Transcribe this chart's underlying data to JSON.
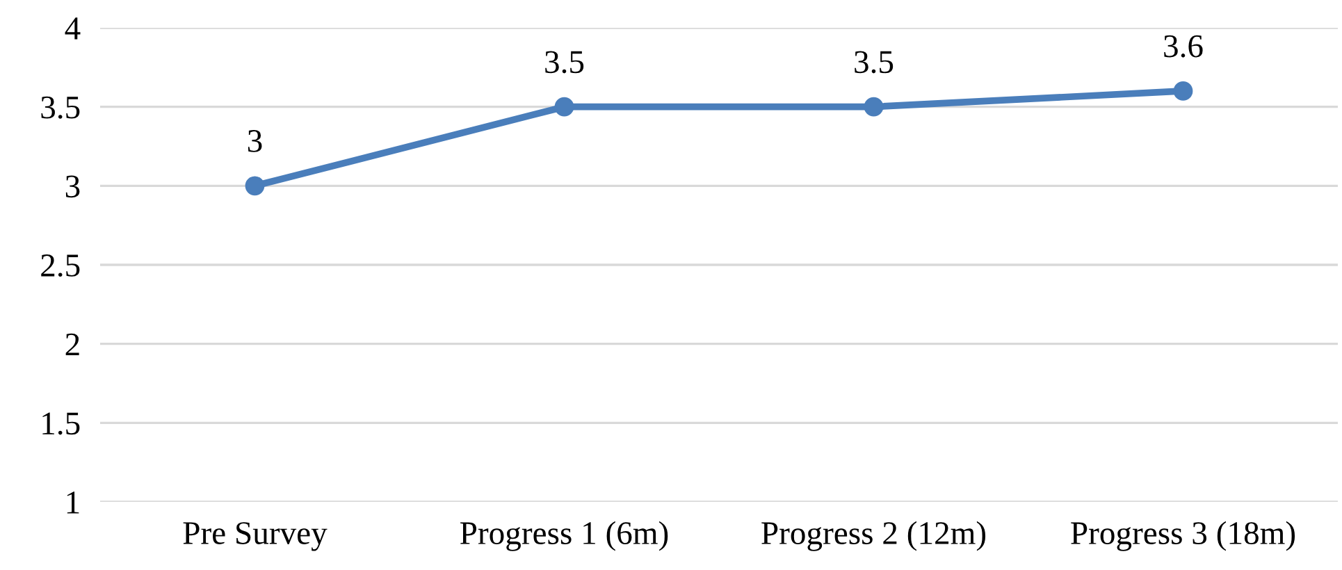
{
  "chart_data": {
    "type": "line",
    "categories": [
      "Pre Survey",
      "Progress 1 (6m)",
      "Progress 2 (12m)",
      "Progress 3 (18m)"
    ],
    "series": [
      {
        "color": "#4a7ebb",
        "values": [
          3,
          3.5,
          3.5,
          3.6
        ]
      }
    ],
    "ylim": [
      1,
      4
    ],
    "yticks": [
      1,
      1.5,
      2,
      2.5,
      3,
      3.5,
      4
    ],
    "grid": "y",
    "marker": "circle",
    "line_style": "solid",
    "data_labels": true,
    "legend": false
  }
}
